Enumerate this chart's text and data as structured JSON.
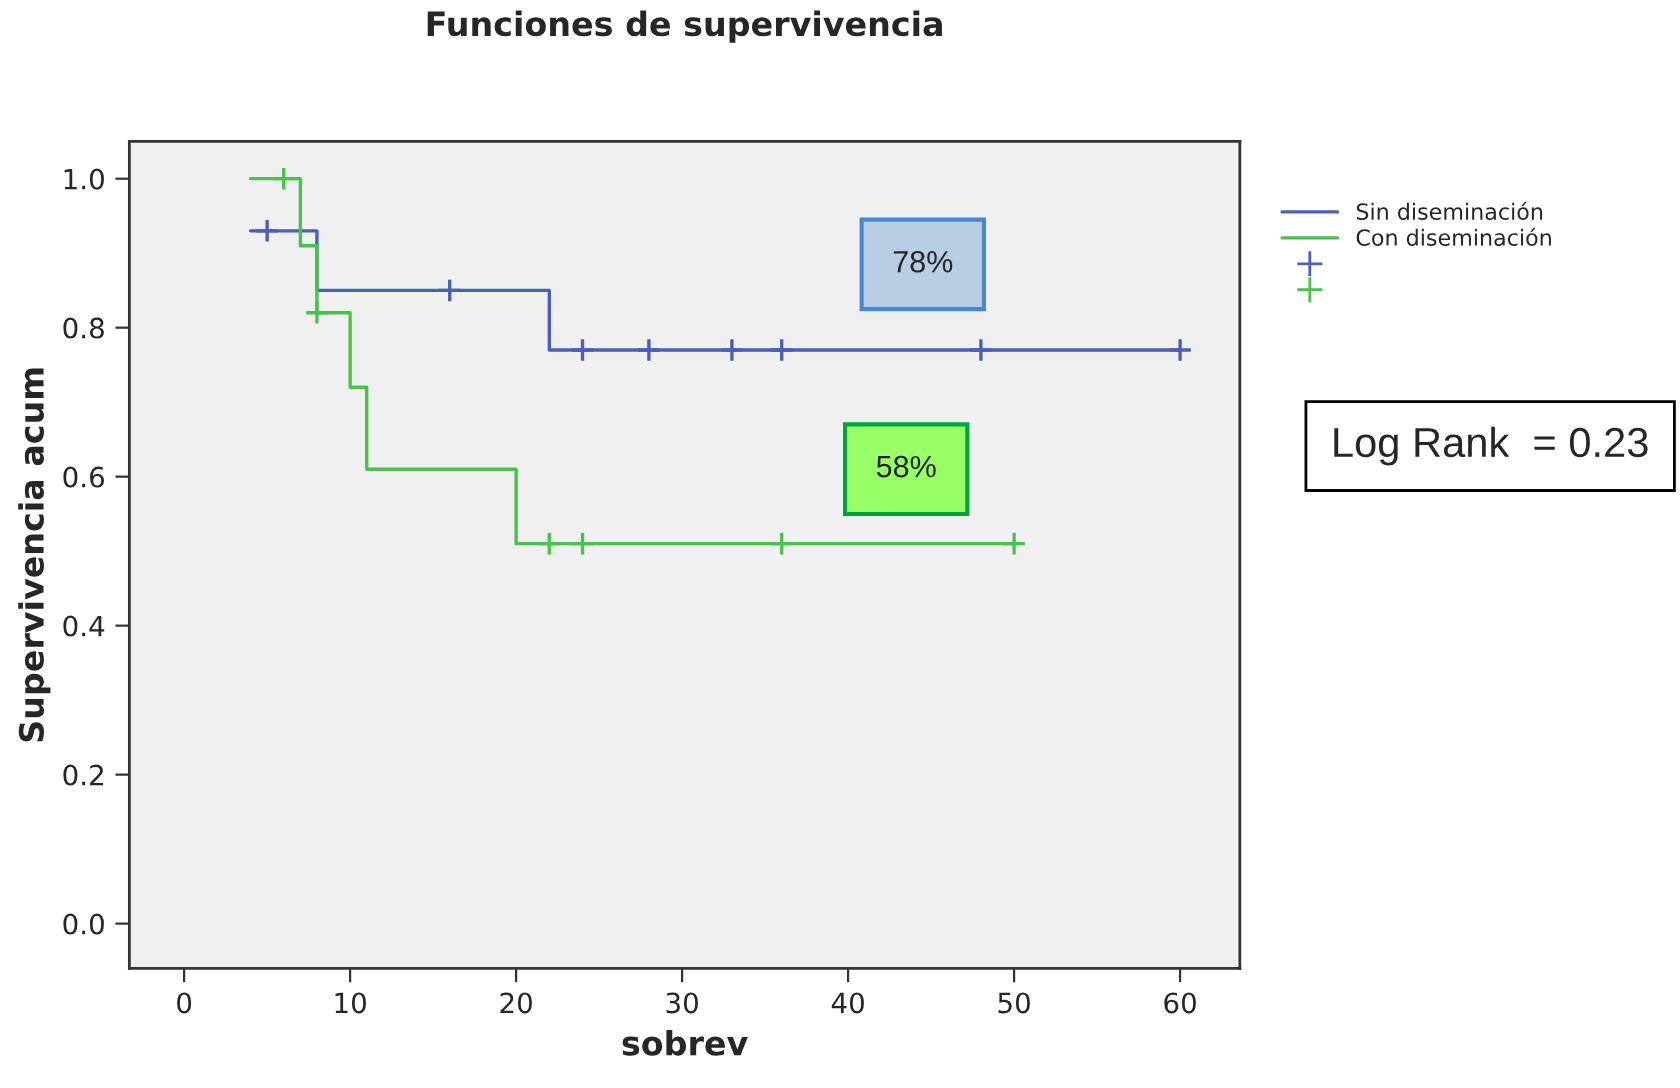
{
  "chart_data": {
    "type": "step",
    "title": "Funciones de supervivencia",
    "xlabel": "sobrev",
    "ylabel": "Supervivencia acum",
    "series": [
      {
        "name": "Sin diseminación",
        "color": "#4a5fb5",
        "x": [
          4,
          8,
          22,
          60
        ],
        "values": [
          0.93,
          0.85,
          0.77,
          0.77
        ]
      },
      {
        "name": "Con diseminación",
        "color": "#4cc04c",
        "x": [
          4,
          7,
          8,
          10,
          11,
          20,
          50
        ],
        "values": [
          1.0,
          0.91,
          0.82,
          0.72,
          0.61,
          0.51,
          0.51
        ]
      },
      {
        "type": "scatter",
        "marker": "cross",
        "color": "#4a5fb5",
        "x": [
          5,
          16,
          24,
          28,
          33,
          36,
          48,
          60
        ],
        "values": [
          0.93,
          0.85,
          0.77,
          0.77,
          0.77,
          0.77,
          0.77,
          0.77
        ]
      },
      {
        "type": "scatter",
        "marker": "cross",
        "color": "#4cc04c",
        "x": [
          6,
          8,
          22,
          24,
          36,
          50
        ],
        "values": [
          1.0,
          0.82,
          0.51,
          0.51,
          0.51,
          0.51
        ]
      }
    ],
    "xlim": [
      -3.3,
      63.6
    ],
    "ylim": [
      -0.06,
      1.05
    ],
    "xticks": [
      0,
      10,
      20,
      30,
      40,
      50,
      60
    ],
    "yticks": [
      {
        "value": 0,
        "label": "0.0"
      },
      {
        "value": 0.2,
        "label": "0.2"
      },
      {
        "value": 0.4,
        "label": "0.4"
      },
      {
        "value": 0.6,
        "label": "0.6"
      },
      {
        "value": 0.8,
        "label": "0.8"
      },
      {
        "value": 1.0,
        "label": "1.0"
      }
    ],
    "legend": "right",
    "annotations": [
      "78%",
      "58%",
      "Log Rank  = 0.23"
    ]
  }
}
